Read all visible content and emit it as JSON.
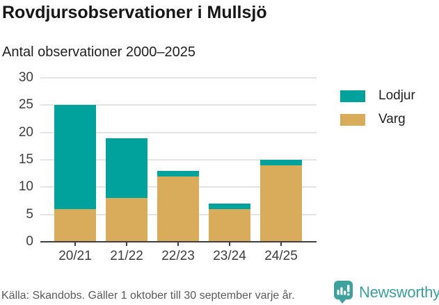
{
  "title": "Rovdjursobservationer i Mullsjö",
  "subtitle": "Antal observationer 2000–2025",
  "source": "Källa: Skandobs. Gäller 1 oktober till 30 september varje år.",
  "branding": {
    "logo_text": "Newsworthy",
    "logo_color": "#3fa0a0",
    "logo_text_color": "#3b9e9e",
    "logo_icon": "bar-chart-speech-bubble-icon"
  },
  "colors": {
    "lodjur": "#00a29b",
    "varg": "#d9ac5c",
    "gridline": "#e4e4e4",
    "axis": "#404040",
    "tick_label": "#3d3d3d"
  },
  "chart_data": {
    "type": "bar",
    "stacked": true,
    "title": "Rovdjursobservationer i Mullsjö",
    "subtitle": "Antal observationer 2000–2025",
    "categories": [
      "20/21",
      "21/22",
      "22/23",
      "23/24",
      "24/25"
    ],
    "series": [
      {
        "name": "Varg",
        "color": "#d9ac5c",
        "values": [
          6,
          8,
          12,
          6,
          14
        ]
      },
      {
        "name": "Lodjur",
        "color": "#00a29b",
        "values": [
          19,
          11,
          1,
          1,
          1
        ]
      }
    ],
    "totals": [
      25,
      19,
      13,
      7,
      15
    ],
    "xlabel": "",
    "ylabel": "",
    "ylim": [
      0,
      30
    ],
    "yticks": [
      0,
      5,
      10,
      15,
      20,
      25,
      30
    ],
    "grid": true,
    "legend_position": "right",
    "legend": [
      "Lodjur",
      "Varg"
    ]
  }
}
